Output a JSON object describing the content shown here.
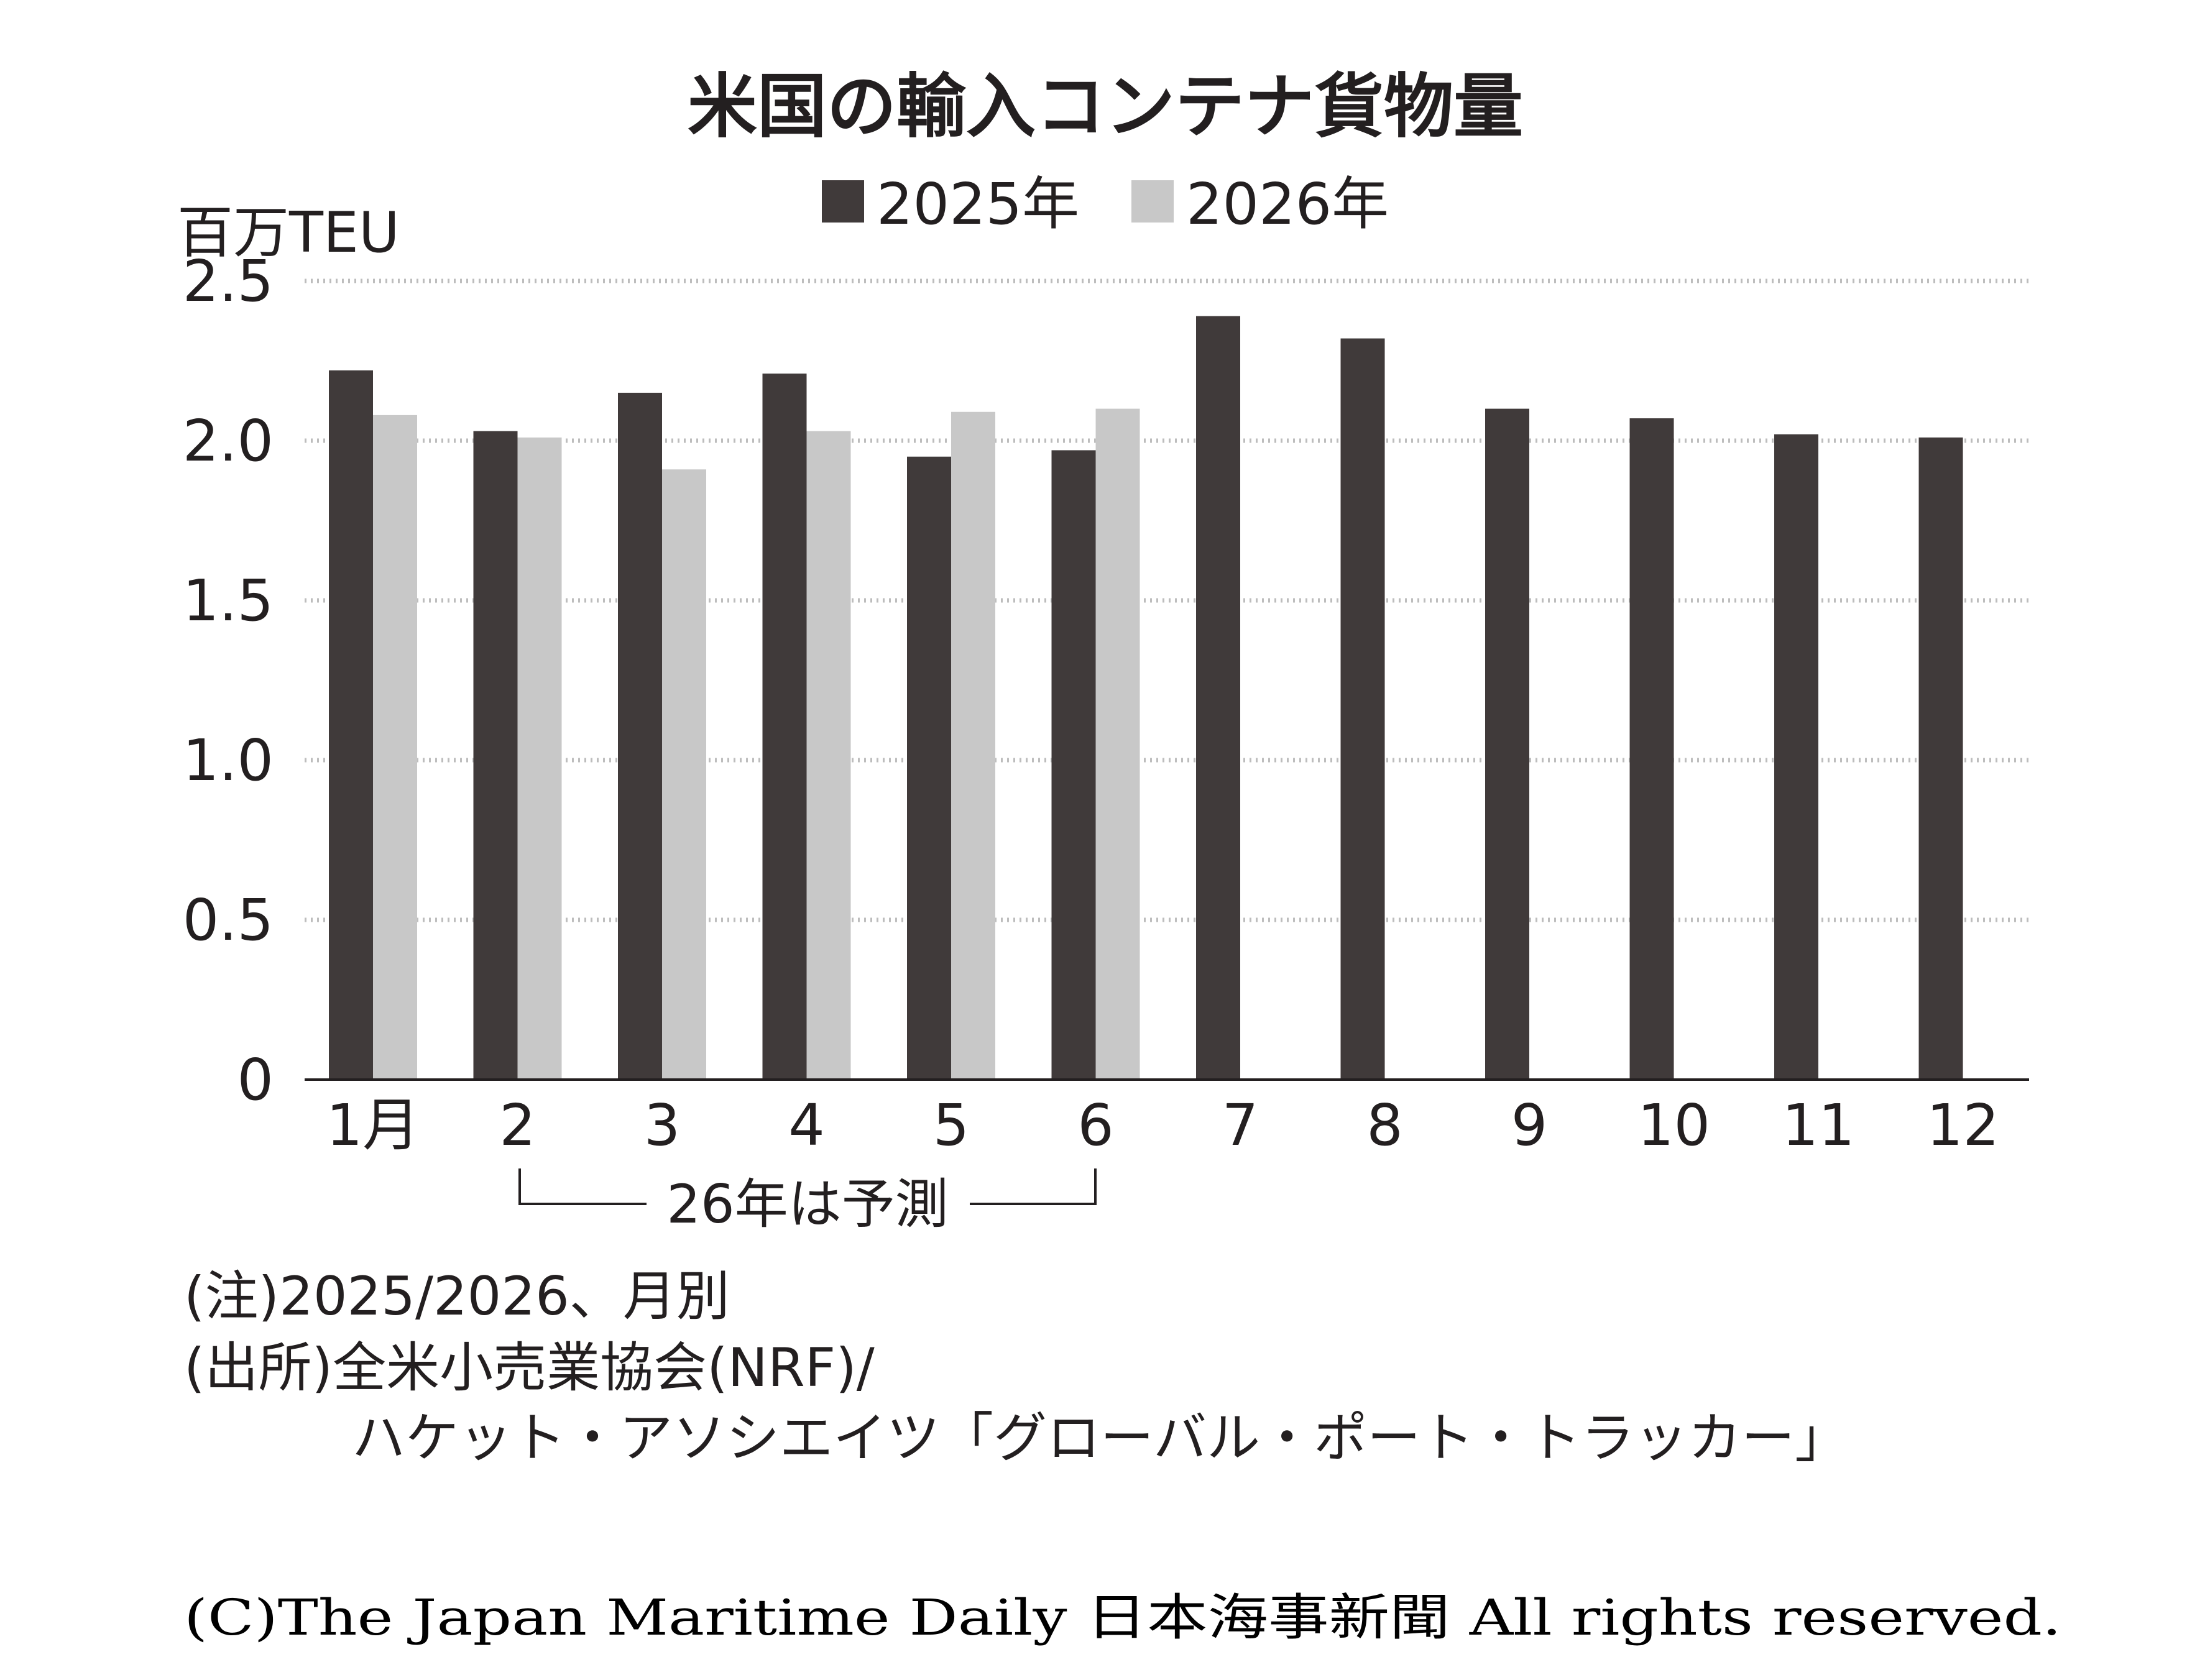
{
  "chart_data": {
    "type": "bar",
    "title": "米国の輸入コンテナ貨物量",
    "ylabel": "百万TEU",
    "xlabel": "",
    "ylim": [
      0,
      2.5
    ],
    "yticks": [
      "0",
      "0.5",
      "1.0",
      "1.5",
      "2.0",
      "2.5"
    ],
    "ytick_values": [
      0,
      0.5,
      1.0,
      1.5,
      2.0,
      2.5
    ],
    "grid": true,
    "legend_position": "top-center",
    "categories": [
      "1月",
      "2",
      "3",
      "4",
      "5",
      "6",
      "7",
      "8",
      "9",
      "10",
      "11",
      "12"
    ],
    "series": [
      {
        "name": "2025年",
        "color": "#403a3a",
        "values": [
          2.22,
          2.03,
          2.15,
          2.21,
          1.95,
          1.97,
          2.39,
          2.32,
          2.1,
          2.07,
          2.02,
          2.01
        ]
      },
      {
        "name": "2026年",
        "color": "#c8c8c8",
        "values": [
          2.08,
          2.01,
          1.91,
          2.03,
          2.09,
          2.1,
          null,
          null,
          null,
          null,
          null,
          null
        ]
      }
    ],
    "annotation": "26年は予測"
  },
  "notes": {
    "note": "(注)2025/2026、月別",
    "source_line1": "(出所)全米小売業協会(NRF)/",
    "source_line2": "ハケット・アソシエイツ「グローバル・ポート・トラッカー」"
  },
  "copyright": "(C)The Japan Maritime Daily 日本海事新聞 All rights reserved."
}
